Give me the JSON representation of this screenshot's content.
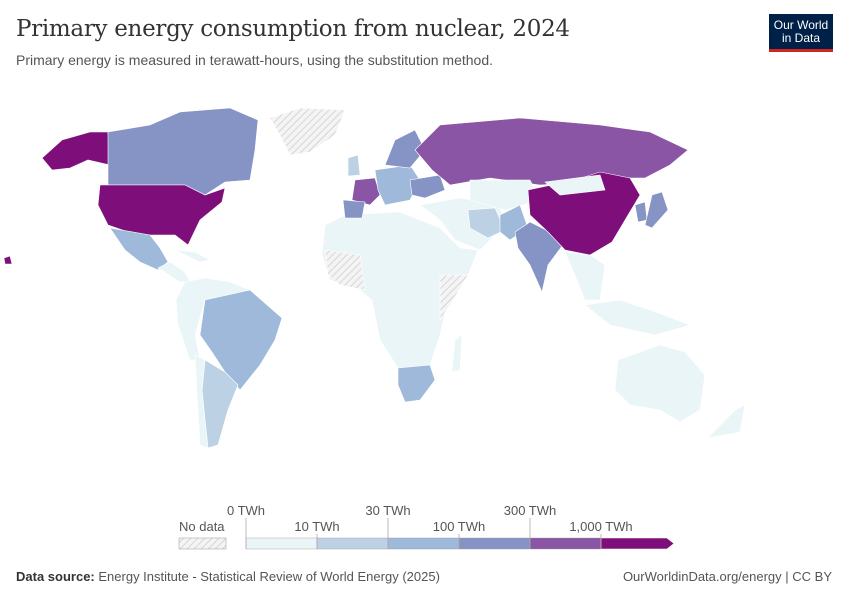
{
  "header": {
    "title": "Primary energy consumption from nuclear, 2024",
    "subtitle": "Primary energy is measured in terawatt-hours, using the substitution method."
  },
  "logo": {
    "text": "Our World in Data",
    "line1": "Our World",
    "line2": "in Data",
    "bg": "#002147",
    "accent": "#ce261e"
  },
  "legend": {
    "no_data": "No data",
    "thresholds": [
      "0 TWh",
      "10 TWh",
      "30 TWh",
      "100 TWh",
      "300 TWh",
      "1,000 TWh"
    ],
    "colors": [
      "#eaf5f7",
      "#bcd2e4",
      "#9eb9d9",
      "#8593c5",
      "#8a55a5",
      "#7e0f7a"
    ],
    "no_data_color": "#e8e8e8"
  },
  "map_data": {
    "type": "choropleth",
    "categories": [
      "0-10 TWh",
      "10-30 TWh",
      "30-100 TWh",
      "100-300 TWh",
      "300-1,000 TWh",
      "1,000+ TWh"
    ],
    "countries": [
      {
        "name": "United States",
        "bin": 5
      },
      {
        "name": "China",
        "bin": 5
      },
      {
        "name": "France",
        "bin": 4
      },
      {
        "name": "Russia",
        "bin": 4
      },
      {
        "name": "Canada",
        "bin": 3
      },
      {
        "name": "South Korea",
        "bin": 3
      },
      {
        "name": "India",
        "bin": 3
      },
      {
        "name": "Japan",
        "bin": 3
      },
      {
        "name": "Spain",
        "bin": 3
      },
      {
        "name": "Ukraine",
        "bin": 3
      },
      {
        "name": "Sweden",
        "bin": 3
      },
      {
        "name": "Brazil",
        "bin": 2
      },
      {
        "name": "Mexico",
        "bin": 2
      },
      {
        "name": "Pakistan",
        "bin": 2
      },
      {
        "name": "South Africa",
        "bin": 2
      },
      {
        "name": "Finland",
        "bin": 2
      },
      {
        "name": "Argentina",
        "bin": 1
      },
      {
        "name": "Iran",
        "bin": 1
      },
      {
        "name": "United Kingdom",
        "bin": 1
      },
      {
        "name": "Greenland",
        "bin": -1
      },
      {
        "name": "Western Sahara",
        "bin": -1
      }
    ]
  },
  "footer": {
    "source_label": "Data source:",
    "source": "Energy Institute - Statistical Review of World Energy (2025)",
    "url": "OurWorldinData.org/energy | CC BY"
  }
}
